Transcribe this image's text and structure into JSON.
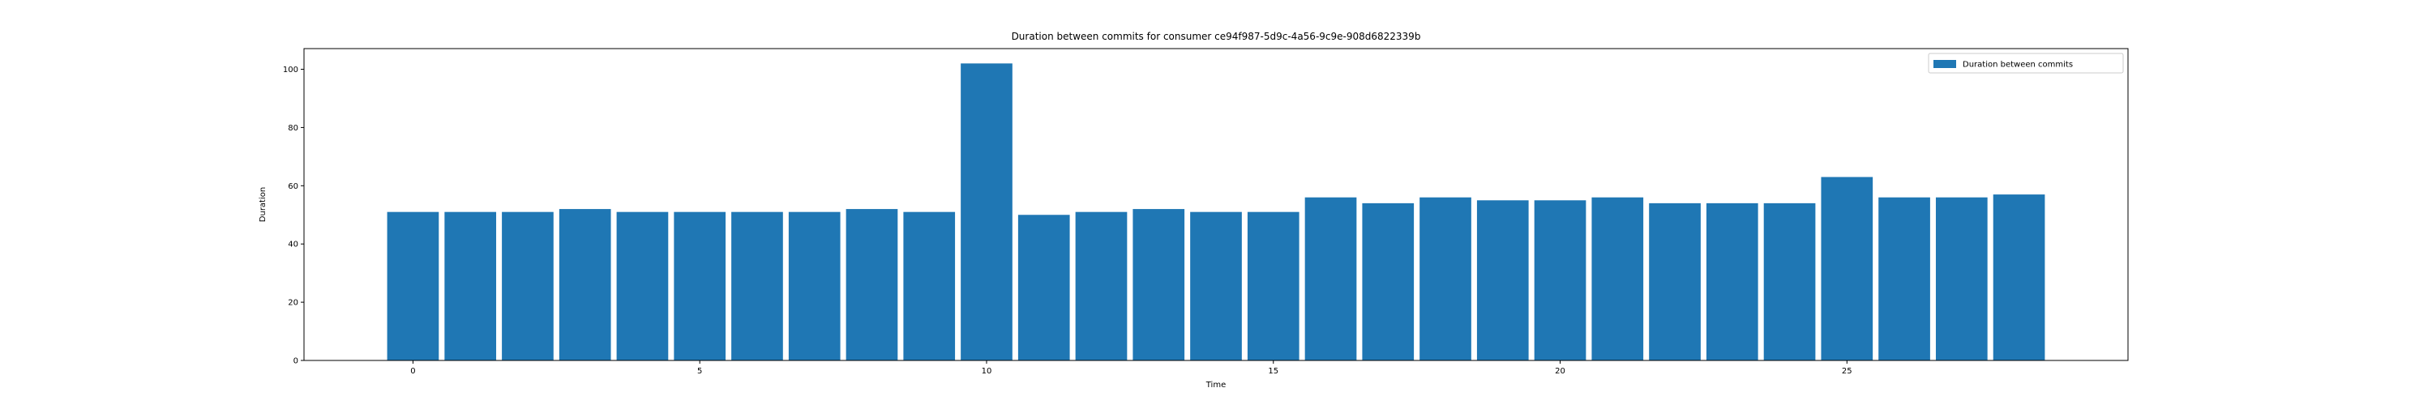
{
  "chart_data": {
    "type": "bar",
    "title": "Duration between commits for consumer ce94f987-5d9c-4a56-9c9e-908d6822339b",
    "xlabel": "Time",
    "ylabel": "Duration",
    "x": [
      0,
      1,
      2,
      3,
      4,
      5,
      6,
      7,
      8,
      9,
      10,
      11,
      12,
      13,
      14,
      15,
      16,
      17,
      18,
      19,
      20,
      21,
      22,
      23,
      24,
      25,
      26,
      27,
      28
    ],
    "values": [
      51,
      51,
      51,
      52,
      51,
      51,
      51,
      51,
      52,
      51,
      102,
      50,
      51,
      52,
      51,
      51,
      56,
      54,
      56,
      55,
      55,
      56,
      54,
      54,
      54,
      63,
      56,
      56,
      57
    ],
    "series_name": "Duration between commits",
    "bar_color": "#1f77b4",
    "xlim": [
      -1.9,
      29.9
    ],
    "ylim": [
      0,
      107.1
    ],
    "xticks": [
      0,
      5,
      10,
      15,
      20,
      25
    ],
    "yticks": [
      0,
      20,
      40,
      60,
      80,
      100
    ],
    "legend_position": "upper right",
    "grid": false
  }
}
